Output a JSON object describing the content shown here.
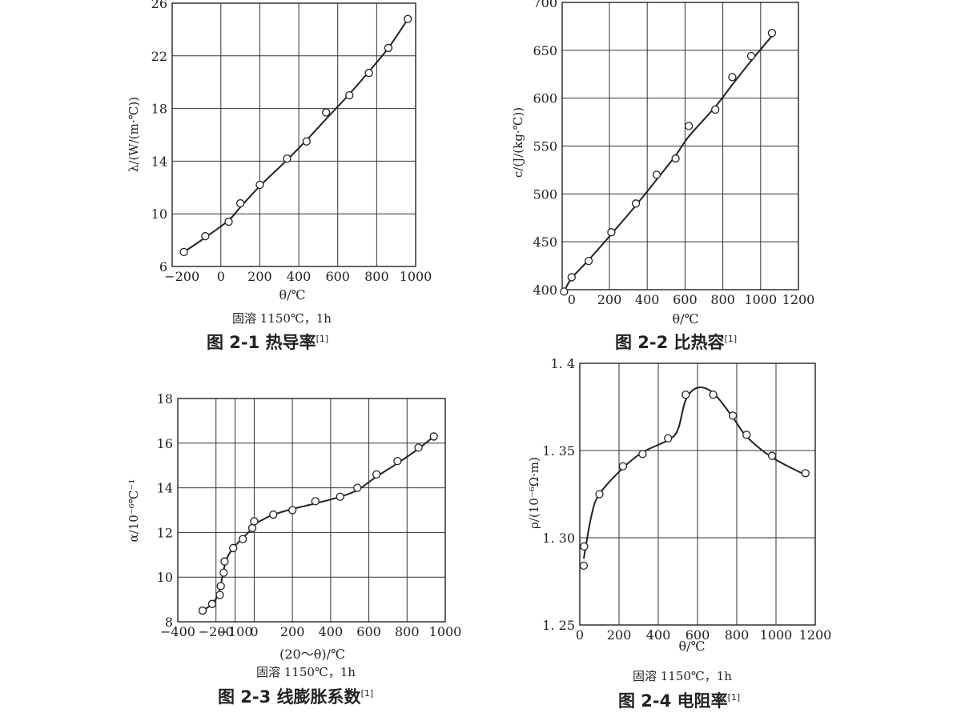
{
  "chart_data": [
    {
      "type": "scatter",
      "title": "图 2-1 热导率",
      "ref": "[1]",
      "subtitle": "固溶 1150℃，1h",
      "xlabel": "θ/℃",
      "ylabel": "λ/(W/(m·℃))",
      "xlim": [
        -250,
        1000
      ],
      "ylim": [
        6,
        26
      ],
      "xticks": [
        -200,
        0,
        200,
        400,
        600,
        800,
        1000
      ],
      "xtick_labels": [
        "−200",
        "0",
        "200",
        "400",
        "600",
        "800",
        "1000"
      ],
      "yticks": [
        6,
        10,
        14,
        18,
        22,
        26
      ],
      "ytick_labels": [
        "6",
        "10",
        "14",
        "18",
        "22",
        "26"
      ],
      "grid": true,
      "points": [
        [
          -190,
          7.1
        ],
        [
          -80,
          8.3
        ],
        [
          40,
          9.4
        ],
        [
          100,
          10.8
        ],
        [
          200,
          12.2
        ],
        [
          340,
          14.2
        ],
        [
          440,
          15.5
        ],
        [
          540,
          17.7
        ],
        [
          660,
          19.0
        ],
        [
          760,
          20.7
        ],
        [
          860,
          22.6
        ],
        [
          960,
          24.8
        ]
      ],
      "curve": [
        [
          -190,
          7.1
        ],
        [
          -80,
          8.2
        ],
        [
          40,
          9.5
        ],
        [
          100,
          10.5
        ],
        [
          200,
          12.1
        ],
        [
          340,
          14.1
        ],
        [
          440,
          15.6
        ],
        [
          540,
          17.2
        ],
        [
          660,
          19.1
        ],
        [
          760,
          20.8
        ],
        [
          860,
          22.6
        ],
        [
          960,
          24.8
        ]
      ]
    },
    {
      "type": "scatter",
      "title": "图 2-2 比热容",
      "ref": "[1]",
      "subtitle": "",
      "xlabel": "θ/℃",
      "ylabel": "c/(J/(kg·℃))",
      "xlim": [
        -50,
        1200
      ],
      "ylim": [
        400,
        700
      ],
      "xticks": [
        0,
        200,
        400,
        600,
        800,
        1000,
        1200
      ],
      "xtick_labels": [
        "0",
        "200",
        "400",
        "600",
        "800",
        "1000",
        "1200"
      ],
      "yticks": [
        400,
        450,
        500,
        550,
        600,
        650,
        700
      ],
      "ytick_labels": [
        "400",
        "450",
        "500",
        "550",
        "600",
        "650",
        "700"
      ],
      "grid": true,
      "points": [
        [
          -40,
          398
        ],
        [
          0,
          413
        ],
        [
          90,
          430
        ],
        [
          210,
          460
        ],
        [
          340,
          490
        ],
        [
          450,
          520
        ],
        [
          550,
          537
        ],
        [
          620,
          571
        ],
        [
          760,
          588
        ],
        [
          850,
          622
        ],
        [
          950,
          644
        ],
        [
          1060,
          668
        ]
      ],
      "curve": [
        [
          -40,
          398
        ],
        [
          0,
          412
        ],
        [
          90,
          431
        ],
        [
          210,
          458
        ],
        [
          340,
          488
        ],
        [
          450,
          515
        ],
        [
          550,
          540
        ],
        [
          620,
          560
        ],
        [
          760,
          591
        ],
        [
          850,
          614
        ],
        [
          950,
          639
        ],
        [
          1060,
          665
        ]
      ]
    },
    {
      "type": "scatter",
      "title": "图 2-3 线膨胀系数",
      "ref": "[1]",
      "subtitle": "固溶 1150℃，1h",
      "xlabel": "(20～θ)/℃",
      "ylabel": "α/10⁻⁶℃⁻¹",
      "xlim": [
        -400,
        1000
      ],
      "ylim": [
        8,
        18
      ],
      "xticks": [
        -400,
        -200,
        -100,
        0,
        200,
        400,
        600,
        800,
        1000
      ],
      "xtick_labels": [
        "−400",
        "−200",
        "−100",
        "0",
        "200",
        "400",
        "600",
        "800",
        "1000"
      ],
      "yticks": [
        8,
        10,
        12,
        14,
        16,
        18
      ],
      "ytick_labels": [
        "8",
        "10",
        "12",
        "14",
        "16",
        "18"
      ],
      "grid": true,
      "points": [
        [
          -270,
          8.5
        ],
        [
          -220,
          8.8
        ],
        [
          -180,
          9.2
        ],
        [
          -175,
          9.6
        ],
        [
          -160,
          10.2
        ],
        [
          -155,
          10.7
        ],
        [
          -110,
          11.3
        ],
        [
          -60,
          11.7
        ],
        [
          -10,
          12.2
        ],
        [
          0,
          12.5
        ],
        [
          100,
          12.8
        ],
        [
          200,
          13.0
        ],
        [
          320,
          13.4
        ],
        [
          450,
          13.6
        ],
        [
          540,
          14.0
        ],
        [
          640,
          14.6
        ],
        [
          750,
          15.2
        ],
        [
          860,
          15.8
        ],
        [
          940,
          16.3
        ]
      ],
      "curve": [
        [
          -270,
          8.5
        ],
        [
          -220,
          8.8
        ],
        [
          -185,
          9.3
        ],
        [
          -165,
          10.1
        ],
        [
          -145,
          10.8
        ],
        [
          -110,
          11.3
        ],
        [
          -60,
          11.75
        ],
        [
          -20,
          12.1
        ],
        [
          0,
          12.35
        ],
        [
          50,
          12.6
        ],
        [
          100,
          12.8
        ],
        [
          200,
          13.05
        ],
        [
          320,
          13.3
        ],
        [
          450,
          13.6
        ],
        [
          540,
          13.9
        ],
        [
          640,
          14.5
        ],
        [
          750,
          15.1
        ],
        [
          860,
          15.75
        ],
        [
          940,
          16.3
        ]
      ]
    },
    {
      "type": "scatter",
      "title": "图 2-4 电阻率",
      "ref": "[1]",
      "subtitle": "固溶 1150℃，1h",
      "xlabel": "θ/℃",
      "ylabel": "ρ/(10⁻⁶Ω·m)",
      "xlim": [
        0,
        1200
      ],
      "ylim": [
        1.25,
        1.4
      ],
      "xticks": [
        0,
        200,
        400,
        600,
        800,
        1000,
        1200
      ],
      "xtick_labels": [
        "0",
        "200",
        "400",
        "600",
        "800",
        "1000",
        "1200"
      ],
      "yticks": [
        1.25,
        1.3,
        1.35,
        1.4
      ],
      "ytick_labels": [
        "1. 25",
        "1. 30",
        "1. 35",
        "1. 4"
      ],
      "grid": true,
      "points": [
        [
          20,
          1.284
        ],
        [
          22,
          1.295
        ],
        [
          100,
          1.325
        ],
        [
          220,
          1.341
        ],
        [
          320,
          1.348
        ],
        [
          450,
          1.357
        ],
        [
          540,
          1.382
        ],
        [
          680,
          1.382
        ],
        [
          780,
          1.37
        ],
        [
          850,
          1.359
        ],
        [
          980,
          1.347
        ],
        [
          1150,
          1.337
        ]
      ],
      "curve": [
        [
          20,
          1.288
        ],
        [
          60,
          1.313
        ],
        [
          100,
          1.325
        ],
        [
          220,
          1.34
        ],
        [
          320,
          1.349
        ],
        [
          450,
          1.356
        ],
        [
          500,
          1.362
        ],
        [
          540,
          1.379
        ],
        [
          600,
          1.386
        ],
        [
          680,
          1.383
        ],
        [
          780,
          1.369
        ],
        [
          850,
          1.358
        ],
        [
          980,
          1.346
        ],
        [
          1150,
          1.336
        ]
      ]
    }
  ]
}
